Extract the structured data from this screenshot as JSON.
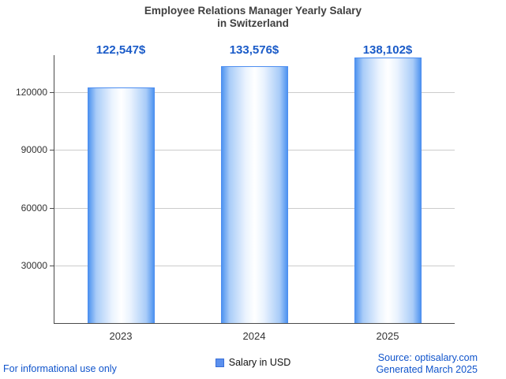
{
  "title": {
    "line1": "Employee Relations Manager Yearly Salary",
    "line2": "in Switzerland"
  },
  "chart_data": {
    "type": "bar",
    "title": "Employee Relations Manager Yearly Salary in Switzerland",
    "categories": [
      "2023",
      "2024",
      "2025"
    ],
    "values": [
      122547,
      133576,
      138102
    ],
    "value_labels": [
      "122,547$",
      "133,576$",
      "138,102$"
    ],
    "xlabel": "",
    "ylabel": "",
    "ylim": [
      0,
      140000
    ],
    "yticks": [
      30000,
      60000,
      90000,
      120000
    ],
    "grid": true,
    "legend": {
      "label": "Salary in USD",
      "position": "bottom"
    }
  },
  "footer": {
    "disclaimer": "For informational use only",
    "source": "Source: optisalary.com",
    "generated": "Generated March 2025"
  },
  "colors": {
    "title": "#404040",
    "value_label": "#1a5bc8",
    "bar_edge": "#4f94f0",
    "bar_border": "#4c8df0",
    "swatch": "#5b90ee",
    "grid": "#cccccc",
    "axis": "#4a4a4a",
    "footer_link": "#1155cc"
  }
}
